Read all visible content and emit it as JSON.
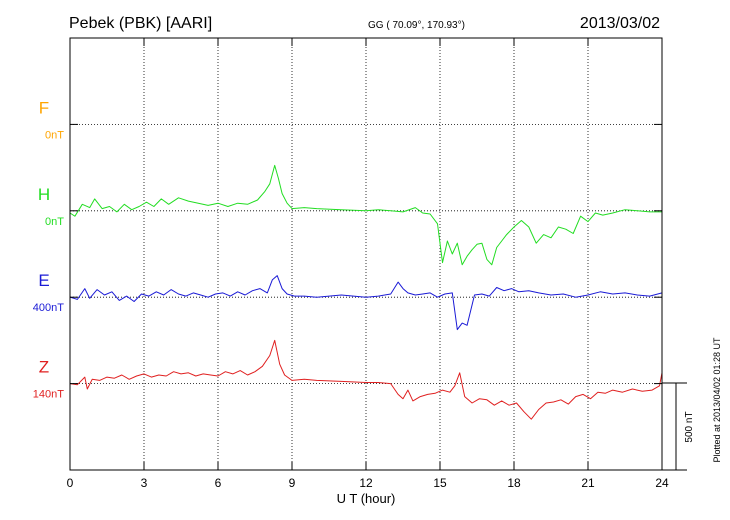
{
  "header": {
    "title": "Pebek (PBK)  [AARI]",
    "coords": "GG ( 70.09°, 170.93°)",
    "date": "2013/03/02"
  },
  "side_note": "Plotted at 2013/04/02 01:28 UT",
  "scale_bar_label": "500 nT",
  "colors": {
    "F": "#ffa500",
    "H": "#22dd22",
    "E": "#1a1ad6",
    "Z": "#e02020",
    "axis": "#000000",
    "grid": "#000000"
  },
  "chart_data": {
    "type": "line",
    "xlabel": "U T (hour)",
    "xlim": [
      0,
      24
    ],
    "xticks": [
      "0",
      "3",
      "6",
      "9",
      "12",
      "15",
      "18",
      "21",
      "24"
    ],
    "grid": true,
    "units": "nT",
    "panel_range_nT": 2000,
    "series": [
      {
        "name": "F",
        "baseline_label": "0nT",
        "baseline_nT": 0,
        "x": [],
        "y": []
      },
      {
        "name": "H",
        "baseline_label": "0nT",
        "baseline_nT": 0,
        "x": [
          0,
          0.2,
          0.5,
          0.8,
          1.0,
          1.3,
          1.6,
          1.9,
          2.2,
          2.5,
          2.8,
          3.1,
          3.4,
          3.7,
          4.0,
          4.4,
          4.8,
          5.2,
          5.6,
          6.0,
          6.4,
          6.8,
          7.2,
          7.6,
          7.9,
          8.1,
          8.3,
          8.45,
          8.6,
          8.8,
          9.0,
          9.5,
          10,
          11,
          12,
          12.5,
          13,
          13.5,
          14,
          14.3,
          14.6,
          14.9,
          15.1,
          15.3,
          15.5,
          15.7,
          15.9,
          16.1,
          16.3,
          16.5,
          16.7,
          16.9,
          17.1,
          17.3,
          17.5,
          17.7,
          18.0,
          18.3,
          18.6,
          18.9,
          19.2,
          19.5,
          19.8,
          20.1,
          20.4,
          20.7,
          21.0,
          21.3,
          21.6,
          22,
          22.5,
          23,
          23.5,
          24
        ],
        "y": [
          -10,
          -25,
          30,
          15,
          55,
          10,
          20,
          -5,
          30,
          5,
          20,
          40,
          20,
          55,
          30,
          60,
          45,
          35,
          25,
          35,
          20,
          35,
          30,
          50,
          90,
          125,
          210,
          150,
          80,
          35,
          10,
          15,
          10,
          5,
          0,
          5,
          0,
          -5,
          15,
          -10,
          -15,
          -60,
          -240,
          -140,
          -200,
          -150,
          -250,
          -210,
          -180,
          -155,
          -150,
          -225,
          -250,
          -170,
          -140,
          -110,
          -75,
          -45,
          -75,
          -150,
          -110,
          -125,
          -75,
          -85,
          -105,
          -25,
          -50,
          -10,
          -20,
          -10,
          5,
          0,
          -5,
          -5
        ]
      },
      {
        "name": "E",
        "baseline_label": "400nT",
        "baseline_nT": 400,
        "x": [
          0,
          0.3,
          0.6,
          0.8,
          1.1,
          1.4,
          1.7,
          2.0,
          2.3,
          2.6,
          2.9,
          3.2,
          3.5,
          3.8,
          4.1,
          4.4,
          4.7,
          5.0,
          5.3,
          5.6,
          5.9,
          6.2,
          6.5,
          6.8,
          7.1,
          7.4,
          7.7,
          8.0,
          8.2,
          8.4,
          8.6,
          8.8,
          9.1,
          9.5,
          10,
          11,
          12,
          12.5,
          13,
          13.3,
          13.5,
          13.7,
          14,
          14.3,
          14.6,
          14.9,
          15.2,
          15.5,
          15.7,
          15.9,
          16.1,
          16.4,
          16.7,
          17.0,
          17.3,
          17.6,
          17.9,
          18.2,
          18.6,
          19,
          19.5,
          20,
          20.5,
          21,
          21.5,
          22,
          22.5,
          23,
          23.5,
          24
        ],
        "y": [
          0,
          -10,
          40,
          -5,
          35,
          10,
          25,
          -15,
          5,
          -20,
          15,
          5,
          25,
          10,
          35,
          15,
          5,
          20,
          10,
          0,
          15,
          20,
          5,
          25,
          10,
          30,
          40,
          20,
          80,
          100,
          40,
          15,
          5,
          5,
          0,
          10,
          0,
          5,
          15,
          70,
          40,
          20,
          10,
          15,
          20,
          0,
          15,
          20,
          -150,
          -120,
          -130,
          10,
          15,
          5,
          45,
          30,
          40,
          25,
          30,
          20,
          10,
          15,
          0,
          10,
          25,
          15,
          20,
          10,
          5,
          20
        ]
      },
      {
        "name": "Z",
        "baseline_label": "140nT",
        "baseline_nT": 140,
        "x": [
          0,
          0.3,
          0.6,
          0.7,
          0.9,
          1.2,
          1.5,
          1.8,
          2.1,
          2.4,
          2.7,
          3.0,
          3.3,
          3.6,
          3.9,
          4.2,
          4.5,
          4.8,
          5.1,
          5.4,
          5.7,
          6.0,
          6.3,
          6.6,
          6.9,
          7.2,
          7.5,
          7.8,
          8.1,
          8.3,
          8.5,
          8.7,
          9.0,
          9.5,
          10,
          11,
          12,
          12.5,
          13,
          13.3,
          13.5,
          13.7,
          13.9,
          14.2,
          14.5,
          14.8,
          15.1,
          15.4,
          15.6,
          15.8,
          16.0,
          16.3,
          16.6,
          16.9,
          17.2,
          17.5,
          17.8,
          18.1,
          18.4,
          18.7,
          19.0,
          19.3,
          19.6,
          19.9,
          20.2,
          20.5,
          20.8,
          21.1,
          21.4,
          21.7,
          22.0,
          22.4,
          22.8,
          23.2,
          23.6,
          23.9,
          24
        ],
        "y": [
          0,
          -5,
          30,
          -25,
          20,
          15,
          30,
          25,
          40,
          20,
          35,
          45,
          30,
          40,
          35,
          55,
          45,
          50,
          35,
          45,
          40,
          35,
          55,
          45,
          60,
          40,
          55,
          80,
          130,
          200,
          90,
          40,
          15,
          20,
          15,
          10,
          5,
          5,
          0,
          -50,
          -70,
          -30,
          -80,
          -60,
          -50,
          -45,
          -30,
          -40,
          -10,
          50,
          -60,
          -90,
          -70,
          -75,
          -100,
          -80,
          -100,
          -90,
          -130,
          -165,
          -120,
          -90,
          -85,
          -75,
          -95,
          -60,
          -50,
          -70,
          -40,
          -45,
          -30,
          -40,
          -25,
          -35,
          -30,
          -10,
          50
        ]
      }
    ]
  }
}
